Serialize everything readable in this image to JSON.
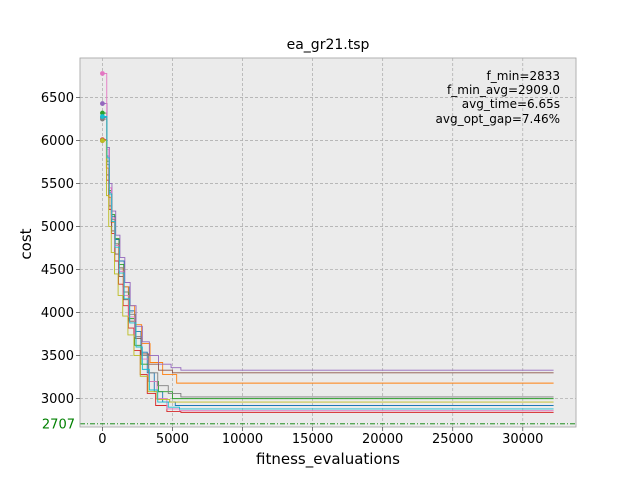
{
  "chart_data": {
    "type": "line",
    "title": "ea_gr21.tsp",
    "xlabel": "fitness_evaluations",
    "ylabel": "cost",
    "xlim": [
      -1600,
      33800
    ],
    "ylim": [
      2670,
      6960
    ],
    "xticks": [
      0,
      5000,
      10000,
      15000,
      20000,
      25000,
      30000
    ],
    "yticks": [
      3000,
      3500,
      4000,
      4500,
      5000,
      5500,
      6000,
      6500
    ],
    "grid": true,
    "background": "#ebebeb",
    "optimum": {
      "value": 2707,
      "label": "2707",
      "color": "#008000"
    },
    "stats": [
      "f_min=2833",
      "f_min_avg=2909.0",
      "avg_time=6.65s",
      "avg_opt_gap=7.46%"
    ],
    "x_end": 32200,
    "series": [
      {
        "color": "#1f77b4",
        "start": 6270,
        "points": [
          [
            320,
            5820
          ],
          [
            480,
            5400
          ],
          [
            640,
            5120
          ],
          [
            900,
            4850
          ],
          [
            1200,
            4600
          ],
          [
            1550,
            4300
          ],
          [
            1900,
            4020
          ],
          [
            2300,
            3780
          ],
          [
            2750,
            3540
          ],
          [
            3200,
            3300
          ],
          [
            3700,
            3080
          ],
          [
            4300,
            2960
          ],
          [
            5200,
            2920
          ]
        ]
      },
      {
        "color": "#ff7f0e",
        "start": 6000,
        "points": [
          [
            280,
            5680
          ],
          [
            440,
            5340
          ],
          [
            620,
            5050
          ],
          [
            880,
            4800
          ],
          [
            1150,
            4520
          ],
          [
            1480,
            4300
          ],
          [
            1850,
            4080
          ],
          [
            2300,
            3860
          ],
          [
            2800,
            3640
          ],
          [
            3400,
            3420
          ],
          [
            4300,
            3280
          ],
          [
            5300,
            3180
          ]
        ]
      },
      {
        "color": "#2ca02c",
        "start": 6320,
        "points": [
          [
            310,
            5760
          ],
          [
            470,
            5420
          ],
          [
            640,
            5140
          ],
          [
            880,
            4860
          ],
          [
            1180,
            4560
          ],
          [
            1520,
            4240
          ],
          [
            1880,
            3930
          ],
          [
            2300,
            3620
          ],
          [
            2750,
            3400
          ],
          [
            3300,
            3200
          ],
          [
            4000,
            3080
          ],
          [
            5000,
            3000
          ]
        ]
      },
      {
        "color": "#d62728",
        "start": 6010,
        "points": [
          [
            300,
            5540
          ],
          [
            460,
            5200
          ],
          [
            650,
            4920
          ],
          [
            880,
            4600
          ],
          [
            1150,
            4330
          ],
          [
            1480,
            4080
          ],
          [
            1850,
            3820
          ],
          [
            2250,
            3560
          ],
          [
            2700,
            3280
          ],
          [
            3200,
            3060
          ],
          [
            3800,
            2920
          ],
          [
            4600,
            2850
          ],
          [
            5600,
            2840
          ]
        ]
      },
      {
        "color": "#9467bd",
        "start": 6430,
        "points": [
          [
            330,
            5920
          ],
          [
            500,
            5500
          ],
          [
            680,
            5180
          ],
          [
            950,
            4900
          ],
          [
            1250,
            4640
          ],
          [
            1600,
            4350
          ],
          [
            1980,
            4080
          ],
          [
            2400,
            3840
          ],
          [
            2850,
            3660
          ],
          [
            3350,
            3500
          ],
          [
            4000,
            3400
          ],
          [
            4900,
            3360
          ],
          [
            5600,
            3330
          ]
        ]
      },
      {
        "color": "#8c564b",
        "start": 6000,
        "points": [
          [
            300,
            5600
          ],
          [
            470,
            5240
          ],
          [
            660,
            4950
          ],
          [
            900,
            4680
          ],
          [
            1180,
            4420
          ],
          [
            1520,
            4150
          ],
          [
            1900,
            3900
          ],
          [
            2350,
            3700
          ],
          [
            2800,
            3520
          ],
          [
            3300,
            3400
          ],
          [
            4000,
            3330
          ],
          [
            5000,
            3300
          ]
        ]
      },
      {
        "color": "#e377c2",
        "start": 6780,
        "points": [
          [
            310,
            5900
          ],
          [
            460,
            5450
          ],
          [
            640,
            5100
          ],
          [
            880,
            4780
          ],
          [
            1180,
            4480
          ],
          [
            1520,
            4200
          ],
          [
            1880,
            3950
          ],
          [
            2300,
            3720
          ],
          [
            2800,
            3460
          ],
          [
            3300,
            3200
          ],
          [
            3900,
            3000
          ],
          [
            4600,
            2880
          ],
          [
            5500,
            2860
          ]
        ]
      },
      {
        "color": "#7f7f7f",
        "start": 6250,
        "points": [
          [
            320,
            5720
          ],
          [
            490,
            5380
          ],
          [
            680,
            5080
          ],
          [
            920,
            4800
          ],
          [
            1200,
            4520
          ],
          [
            1540,
            4240
          ],
          [
            1920,
            3980
          ],
          [
            2350,
            3720
          ],
          [
            2800,
            3500
          ],
          [
            3300,
            3300
          ],
          [
            3950,
            3150
          ],
          [
            4700,
            3060
          ],
          [
            5600,
            3020
          ]
        ]
      },
      {
        "color": "#bcbd22",
        "start": 6000,
        "points": [
          [
            290,
            5360
          ],
          [
            450,
            5000
          ],
          [
            630,
            4700
          ],
          [
            860,
            4450
          ],
          [
            1120,
            4200
          ],
          [
            1450,
            3960
          ],
          [
            1820,
            3740
          ],
          [
            2250,
            3500
          ],
          [
            2700,
            3260
          ],
          [
            3250,
            3080
          ],
          [
            3900,
            2990
          ],
          [
            4800,
            2960
          ]
        ]
      },
      {
        "color": "#17becf",
        "start": 6280,
        "points": [
          [
            320,
            5800
          ],
          [
            480,
            5380
          ],
          [
            660,
            5060
          ],
          [
            900,
            4760
          ],
          [
            1200,
            4460
          ],
          [
            1550,
            4160
          ],
          [
            1950,
            3880
          ],
          [
            2400,
            3600
          ],
          [
            2850,
            3340
          ],
          [
            3350,
            3100
          ],
          [
            3950,
            2960
          ],
          [
            4700,
            2900
          ],
          [
            5500,
            2880
          ]
        ]
      }
    ]
  }
}
